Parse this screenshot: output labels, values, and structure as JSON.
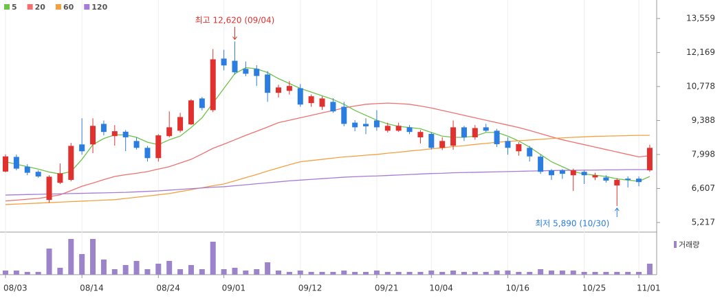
{
  "chart_data": {
    "type": "candlestick",
    "categories": [
      "08/03",
      null,
      null,
      null,
      null,
      null,
      null,
      "08/14",
      null,
      null,
      null,
      null,
      null,
      null,
      "08/24",
      null,
      null,
      null,
      null,
      null,
      "09/01",
      null,
      null,
      null,
      null,
      null,
      null,
      "09/12",
      null,
      null,
      null,
      null,
      null,
      null,
      "09/21",
      null,
      null,
      null,
      null,
      "10/04",
      null,
      null,
      null,
      null,
      null,
      null,
      "10/16",
      null,
      null,
      null,
      null,
      null,
      null,
      "10/25",
      null,
      null,
      null,
      null,
      "11/01",
      null
    ],
    "open": [
      7300,
      7900,
      7500,
      7290,
      6140,
      6840,
      6960,
      8410,
      8410,
      9250,
      8750,
      8930,
      8550,
      8270,
      7850,
      8750,
      8970,
      9230,
      10290,
      9810,
      11920,
      11830,
      11500,
      11500,
      11270,
      10520,
      10600,
      10710,
      10100,
      9950,
      10150,
      9950,
      9300,
      9250,
      9390,
      8970,
      8970,
      9110,
      8700,
      8840,
      8270,
      8360,
      9110,
      8700,
      9110,
      8970,
      8550,
      8130,
      8270,
      7910,
      7350,
      7350,
      7150,
      7290,
      7060,
      7060,
      6730,
      7010,
      7010,
      7350
    ],
    "high": [
      8000,
      8000,
      7600,
      7350,
      7150,
      7630,
      8470,
      9480,
      9480,
      9390,
      9200,
      9000,
      8700,
      8350,
      8830,
      9760,
      9700,
      10260,
      10350,
      12310,
      12280,
      12620,
      11800,
      11650,
      11410,
      10850,
      11000,
      10880,
      10450,
      10380,
      10300,
      10150,
      9400,
      9480,
      9810,
      9300,
      9300,
      9200,
      9000,
      8900,
      8700,
      9390,
      9170,
      9200,
      9250,
      9050,
      8700,
      8500,
      8350,
      8000,
      7400,
      7400,
      7420,
      7350,
      7250,
      7150,
      7030,
      7100,
      7100,
      8400
    ],
    "low": [
      7270,
      7350,
      7150,
      7050,
      6020,
      6790,
      6900,
      7990,
      8050,
      8780,
      8360,
      8140,
      8200,
      7710,
      7710,
      8700,
      8900,
      9200,
      9800,
      9730,
      11440,
      11270,
      11200,
      10800,
      10150,
      10330,
      10450,
      9950,
      9950,
      9820,
      9700,
      9150,
      8950,
      8830,
      8970,
      8900,
      8920,
      8830,
      8450,
      8200,
      8180,
      8190,
      8550,
      8600,
      8920,
      8300,
      7990,
      7950,
      7710,
      7200,
      6960,
      7000,
      6510,
      6790,
      6950,
      6850,
      5890,
      6650,
      6700,
      7290
    ],
    "close": [
      7920,
      7420,
      7250,
      7100,
      7090,
      7230,
      8350,
      8130,
      9170,
      8920,
      8950,
      8700,
      8270,
      7850,
      8780,
      9110,
      9530,
      10210,
      9900,
      11890,
      11640,
      11360,
      11300,
      11210,
      10520,
      10740,
      10800,
      10040,
      10380,
      10290,
      9760,
      9250,
      9110,
      9150,
      9110,
      9170,
      9170,
      8920,
      8920,
      8270,
      8550,
      9110,
      8700,
      9080,
      8970,
      8420,
      8270,
      8420,
      7920,
      7290,
      7150,
      7210,
      7350,
      7150,
      7150,
      6930,
      6960,
      6960,
      6870,
      8270
    ],
    "up_color": "#e0312e",
    "down_color": "#2b7de0",
    "moving_averages": [
      {
        "name": "5",
        "color": "#6cc24a",
        "values": [
          7700,
          7600,
          7500,
          7400,
          7280,
          7200,
          7300,
          7800,
          8400,
          8650,
          8800,
          8800,
          8700,
          8500,
          8400,
          8600,
          8750,
          9100,
          9500,
          10100,
          10700,
          11300,
          11550,
          11500,
          11350,
          11100,
          10900,
          10700,
          10550,
          10400,
          10250,
          10050,
          9800,
          9600,
          9400,
          9250,
          9150,
          9100,
          9050,
          8900,
          8750,
          8700,
          8700,
          8750,
          8900,
          8900,
          8750,
          8550,
          8300,
          8000,
          7700,
          7500,
          7300,
          7200,
          7150,
          7100,
          7000,
          6950,
          6900,
          7100
        ]
      },
      {
        "name": "20",
        "color": "#f07070",
        "values": [
          6100,
          6130,
          6170,
          6200,
          6270,
          6350,
          6520,
          6700,
          6830,
          6970,
          7100,
          7170,
          7230,
          7300,
          7400,
          7500,
          7650,
          7800,
          8020,
          8250,
          8420,
          8600,
          8780,
          8950,
          9120,
          9300,
          9400,
          9500,
          9600,
          9700,
          9800,
          9900,
          9980,
          10050,
          10080,
          10100,
          10080,
          10050,
          9980,
          9900,
          9800,
          9700,
          9600,
          9500,
          9400,
          9300,
          9200,
          9100,
          8980,
          8850,
          8720,
          8600,
          8500,
          8400,
          8300,
          8200,
          8100,
          8000,
          7900,
          7950
        ]
      },
      {
        "name": "60",
        "color": "#f5a040",
        "values": [
          5950,
          5970,
          5990,
          6010,
          6030,
          6050,
          6070,
          6090,
          6110,
          6130,
          6150,
          6200,
          6250,
          6300,
          6350,
          6400,
          6480,
          6560,
          6640,
          6720,
          6790,
          6920,
          7050,
          7180,
          7320,
          7450,
          7580,
          7700,
          7750,
          7800,
          7850,
          7900,
          7930,
          7970,
          8000,
          8050,
          8090,
          8140,
          8180,
          8230,
          8270,
          8320,
          8360,
          8410,
          8450,
          8500,
          8530,
          8560,
          8590,
          8620,
          8650,
          8680,
          8700,
          8720,
          8740,
          8750,
          8760,
          8770,
          8780,
          8780
        ]
      },
      {
        "name": "120",
        "color": "#a57ad8",
        "values": [
          6340,
          6350,
          6360,
          6370,
          6380,
          6390,
          6400,
          6410,
          6420,
          6430,
          6440,
          6450,
          6470,
          6490,
          6510,
          6540,
          6570,
          6600,
          6630,
          6660,
          6680,
          6720,
          6760,
          6800,
          6840,
          6880,
          6920,
          6950,
          6980,
          7010,
          7040,
          7070,
          7090,
          7110,
          7120,
          7140,
          7160,
          7180,
          7200,
          7220,
          7230,
          7250,
          7260,
          7270,
          7280,
          7290,
          7300,
          7310,
          7320,
          7330,
          7340,
          7350,
          7350,
          7360,
          7360,
          7370,
          7370,
          7380,
          7380,
          7380
        ]
      }
    ],
    "ylim": [
      4825,
      14316
    ],
    "yticks": [
      {
        "value": 5217,
        "label": "5,217"
      },
      {
        "value": 6607,
        "label": "6,607"
      },
      {
        "value": 7998,
        "label": "7,998"
      },
      {
        "value": 9388,
        "label": "9,388"
      },
      {
        "value": 10778,
        "label": "10,778"
      },
      {
        "value": 12169,
        "label": "12,169"
      },
      {
        "value": 13559,
        "label": "13,559"
      }
    ],
    "annotations": [
      {
        "text": "최고 12,620 (09/04)",
        "color": "#e0312e"
      },
      {
        "text": "최저 5,890 (10/30)",
        "color": "#2b7de0"
      }
    ],
    "volume": {
      "name": "거래량",
      "color": "#9b84c9",
      "ylim": [
        0,
        60
      ],
      "values": [
        6,
        6,
        4,
        4,
        38,
        10,
        52,
        30,
        52,
        22,
        8,
        14,
        20,
        8,
        16,
        20,
        8,
        14,
        8,
        48,
        8,
        10,
        6,
        8,
        18,
        6,
        4,
        6,
        4,
        4,
        4,
        6,
        4,
        4,
        6,
        4,
        4,
        4,
        4,
        6,
        4,
        6,
        4,
        4,
        4,
        6,
        6,
        4,
        4,
        8,
        6,
        6,
        6,
        4,
        4,
        4,
        4,
        4,
        4,
        16
      ]
    }
  }
}
